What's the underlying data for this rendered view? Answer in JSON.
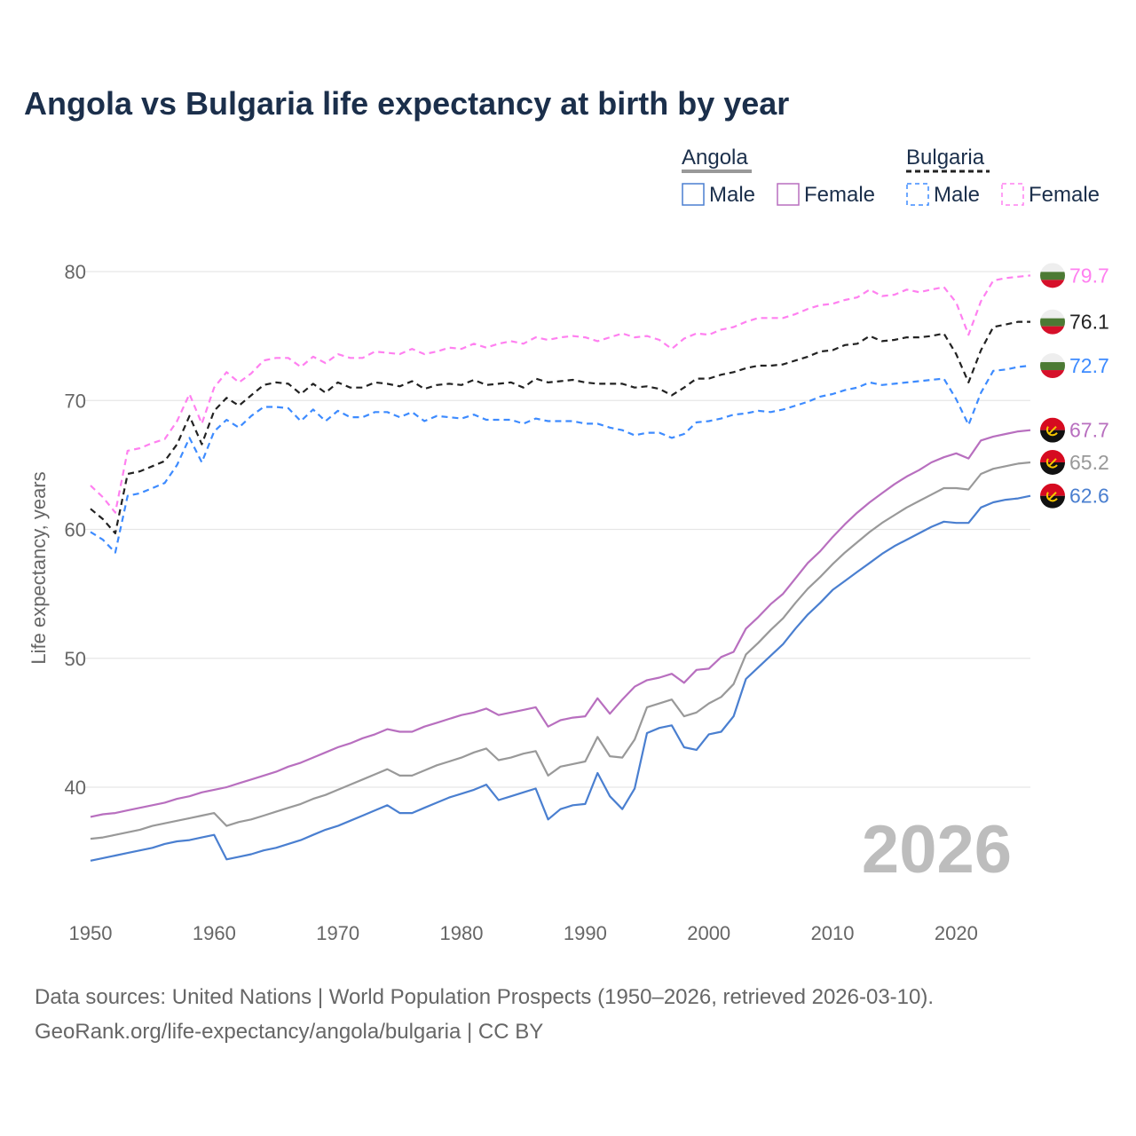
{
  "title": "Angola vs Bulgaria life expectancy at birth by year",
  "year_watermark": "2026",
  "legend": {
    "groups": [
      {
        "name": "Angola",
        "items": [
          "Male",
          "Female"
        ]
      },
      {
        "name": "Bulgaria",
        "items": [
          "Male",
          "Female"
        ]
      }
    ]
  },
  "footer": {
    "line1": "Data sources: United Nations | World Population Prospects (1950–2026, retrieved 2026-03-10).",
    "line2": "GeoRank.org/life-expectancy/angola/bulgaria | CC BY"
  },
  "chart_data": {
    "type": "line",
    "title": "Angola vs Bulgaria life expectancy at birth by year",
    "xlabel": "",
    "ylabel": "Life expectancy, years",
    "xlim": [
      1950,
      2026
    ],
    "ylim": [
      32,
      82
    ],
    "xticks": [
      "1950",
      "1960",
      "1970",
      "1980",
      "1990",
      "2000",
      "2010",
      "2020"
    ],
    "yticks": [
      "40",
      "50",
      "60",
      "70",
      "80"
    ],
    "grid": true,
    "legend_position": "top-right",
    "x_start": 1950,
    "series": [
      {
        "name": "Bulgaria Female",
        "country": "Bulgaria",
        "color": "#ff80f0",
        "dash": true,
        "end_label": "79.7",
        "values": [
          63.4,
          62.5,
          61.3,
          66.1,
          66.3,
          66.7,
          67.0,
          68.4,
          70.5,
          68.2,
          71.0,
          72.2,
          71.4,
          72.1,
          73.1,
          73.3,
          73.3,
          72.6,
          73.4,
          72.9,
          73.6,
          73.3,
          73.3,
          73.8,
          73.7,
          73.6,
          74.0,
          73.6,
          73.8,
          74.1,
          74.0,
          74.4,
          74.1,
          74.4,
          74.6,
          74.4,
          74.9,
          74.7,
          74.9,
          75.0,
          74.9,
          74.6,
          74.9,
          75.2,
          74.9,
          75.0,
          74.7,
          74.0,
          74.8,
          75.2,
          75.1,
          75.5,
          75.7,
          76.1,
          76.4,
          76.4,
          76.4,
          76.7,
          77.1,
          77.4,
          77.5,
          77.8,
          78.0,
          78.6,
          78.1,
          78.2,
          78.6,
          78.4,
          78.6,
          78.8,
          77.6,
          75.1,
          77.7,
          79.3,
          79.5,
          79.6,
          79.7
        ]
      },
      {
        "name": "Bulgaria",
        "country": "Bulgaria",
        "color": "#222222",
        "dash": true,
        "end_label": "76.1",
        "values": [
          61.6,
          60.8,
          59.7,
          64.3,
          64.5,
          64.9,
          65.3,
          66.6,
          68.8,
          66.6,
          69.2,
          70.2,
          69.6,
          70.4,
          71.2,
          71.4,
          71.3,
          70.5,
          71.3,
          70.6,
          71.4,
          71.0,
          71.0,
          71.4,
          71.3,
          71.1,
          71.5,
          70.9,
          71.2,
          71.3,
          71.2,
          71.6,
          71.2,
          71.3,
          71.4,
          71.0,
          71.7,
          71.4,
          71.5,
          71.6,
          71.4,
          71.3,
          71.3,
          71.3,
          71.0,
          71.1,
          70.9,
          70.4,
          71.0,
          71.7,
          71.7,
          72.0,
          72.2,
          72.5,
          72.7,
          72.7,
          72.8,
          73.1,
          73.4,
          73.8,
          73.9,
          74.3,
          74.4,
          75.0,
          74.6,
          74.7,
          74.9,
          74.9,
          75.0,
          75.2,
          73.6,
          71.4,
          73.9,
          75.7,
          75.9,
          76.1,
          76.1
        ]
      },
      {
        "name": "Bulgaria Male",
        "country": "Bulgaria",
        "color": "#3d8bff",
        "dash": true,
        "end_label": "72.7",
        "values": [
          59.8,
          59.2,
          58.2,
          62.6,
          62.8,
          63.2,
          63.6,
          65.0,
          67.1,
          65.2,
          67.6,
          68.5,
          67.9,
          68.8,
          69.5,
          69.5,
          69.4,
          68.4,
          69.3,
          68.4,
          69.2,
          68.7,
          68.7,
          69.1,
          69.1,
          68.7,
          69.1,
          68.4,
          68.8,
          68.7,
          68.6,
          68.9,
          68.5,
          68.5,
          68.5,
          68.2,
          68.6,
          68.4,
          68.4,
          68.4,
          68.2,
          68.2,
          67.9,
          67.7,
          67.3,
          67.5,
          67.5,
          67.1,
          67.4,
          68.3,
          68.4,
          68.6,
          68.9,
          69.0,
          69.2,
          69.1,
          69.3,
          69.6,
          69.9,
          70.3,
          70.5,
          70.8,
          71.0,
          71.4,
          71.2,
          71.3,
          71.4,
          71.5,
          71.6,
          71.7,
          70.1,
          68.1,
          70.6,
          72.3,
          72.4,
          72.6,
          72.7
        ]
      },
      {
        "name": "Angola Female",
        "country": "Angola",
        "color": "#b86fbf",
        "dash": false,
        "end_label": "67.7",
        "values": [
          37.7,
          37.9,
          38.0,
          38.2,
          38.4,
          38.6,
          38.8,
          39.1,
          39.3,
          39.6,
          39.8,
          40.0,
          40.3,
          40.6,
          40.9,
          41.2,
          41.6,
          41.9,
          42.3,
          42.7,
          43.1,
          43.4,
          43.8,
          44.1,
          44.5,
          44.3,
          44.3,
          44.7,
          45.0,
          45.3,
          45.6,
          45.8,
          46.1,
          45.6,
          45.8,
          46.0,
          46.2,
          44.7,
          45.2,
          45.4,
          45.5,
          46.9,
          45.7,
          46.8,
          47.8,
          48.3,
          48.5,
          48.8,
          48.1,
          49.1,
          49.2,
          50.1,
          50.5,
          52.3,
          53.2,
          54.2,
          55.0,
          56.2,
          57.4,
          58.3,
          59.4,
          60.4,
          61.3,
          62.1,
          62.8,
          63.5,
          64.1,
          64.6,
          65.2,
          65.6,
          65.9,
          65.5,
          66.9,
          67.2,
          67.4,
          67.6,
          67.7
        ]
      },
      {
        "name": "Angola",
        "country": "Angola",
        "color": "#999999",
        "dash": false,
        "end_label": "65.2",
        "values": [
          36.0,
          36.1,
          36.3,
          36.5,
          36.7,
          37.0,
          37.2,
          37.4,
          37.6,
          37.8,
          38.0,
          37.0,
          37.3,
          37.5,
          37.8,
          38.1,
          38.4,
          38.7,
          39.1,
          39.4,
          39.8,
          40.2,
          40.6,
          41.0,
          41.4,
          40.9,
          40.9,
          41.3,
          41.7,
          42.0,
          42.3,
          42.7,
          43.0,
          42.1,
          42.3,
          42.6,
          42.8,
          40.9,
          41.6,
          41.8,
          42.0,
          43.9,
          42.4,
          42.3,
          43.7,
          46.2,
          46.5,
          46.8,
          45.5,
          45.8,
          46.5,
          47.0,
          48.0,
          50.3,
          51.2,
          52.2,
          53.1,
          54.3,
          55.4,
          56.3,
          57.3,
          58.2,
          59.0,
          59.8,
          60.5,
          61.1,
          61.7,
          62.2,
          62.7,
          63.2,
          63.2,
          63.1,
          64.3,
          64.7,
          64.9,
          65.1,
          65.2
        ]
      },
      {
        "name": "Angola Male",
        "country": "Angola",
        "color": "#4a7fd0",
        "dash": false,
        "end_label": "62.6",
        "values": [
          34.3,
          34.5,
          34.7,
          34.9,
          35.1,
          35.3,
          35.6,
          35.8,
          35.9,
          36.1,
          36.3,
          34.4,
          34.6,
          34.8,
          35.1,
          35.3,
          35.6,
          35.9,
          36.3,
          36.7,
          37.0,
          37.4,
          37.8,
          38.2,
          38.6,
          38.0,
          38.0,
          38.4,
          38.8,
          39.2,
          39.5,
          39.8,
          40.2,
          39.0,
          39.3,
          39.6,
          39.9,
          37.5,
          38.3,
          38.6,
          38.7,
          41.1,
          39.3,
          38.3,
          39.9,
          44.2,
          44.6,
          44.8,
          43.1,
          42.9,
          44.1,
          44.3,
          45.5,
          48.4,
          49.3,
          50.2,
          51.1,
          52.3,
          53.4,
          54.3,
          55.3,
          56.0,
          56.7,
          57.4,
          58.1,
          58.7,
          59.2,
          59.7,
          60.2,
          60.6,
          60.5,
          60.5,
          61.7,
          62.1,
          62.3,
          62.4,
          62.6
        ]
      }
    ]
  }
}
